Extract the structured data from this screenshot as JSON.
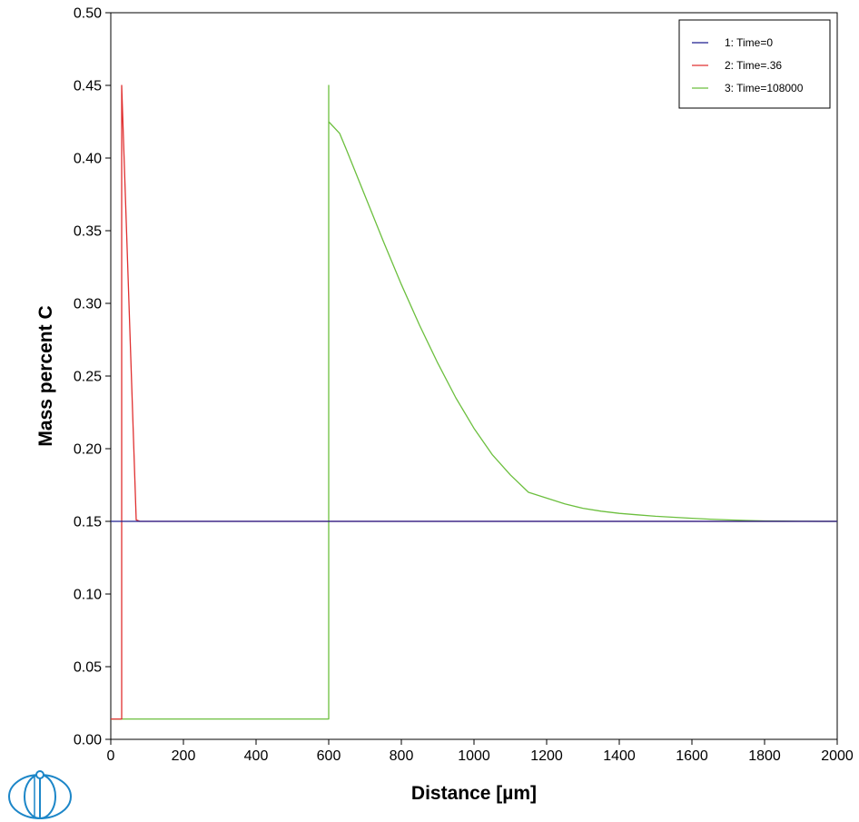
{
  "chart_data": {
    "type": "line",
    "xlabel": "Distance [µm]",
    "ylabel": "Mass percent C",
    "xlim": [
      0,
      2000
    ],
    "ylim": [
      0,
      0.5
    ],
    "xticks": [
      "0",
      "200",
      "400",
      "600",
      "800",
      "1000",
      "1200",
      "1400",
      "1600",
      "1800",
      "2000"
    ],
    "yticks": [
      "0.00",
      "0.05",
      "0.10",
      "0.15",
      "0.20",
      "0.25",
      "0.30",
      "0.35",
      "0.40",
      "0.45",
      "0.50"
    ],
    "grid": false,
    "legend_position": "top-right",
    "series": [
      {
        "name": "1:  Time=0",
        "color": "#1f1f8f",
        "x": [
          0,
          2000
        ],
        "y": [
          0.15,
          0.15
        ]
      },
      {
        "name": "2:  Time=.36",
        "color": "#e03030",
        "x": [
          0,
          30,
          30,
          70,
          80,
          2000
        ],
        "y": [
          0.014,
          0.014,
          0.45,
          0.151,
          0.15,
          0.15
        ]
      },
      {
        "name": "3:  Time=108000",
        "color": "#6cbf3e",
        "x": [
          0,
          600,
          600,
          600,
          630,
          650,
          700,
          750,
          800,
          850,
          900,
          950,
          1000,
          1050,
          1100,
          1150,
          1200,
          1250,
          1300,
          1350,
          1400,
          1450,
          1500,
          1550,
          1600,
          1650,
          1700,
          1750,
          1800,
          1850,
          1900,
          1950,
          2000
        ],
        "y": [
          0.014,
          0.014,
          0.45,
          0.425,
          0.417,
          0.405,
          0.374,
          0.343,
          0.313,
          0.285,
          0.259,
          0.235,
          0.214,
          0.196,
          0.182,
          0.17,
          0.166,
          0.162,
          0.159,
          0.157,
          0.1555,
          0.1545,
          0.1535,
          0.1528,
          0.1521,
          0.1515,
          0.151,
          0.1506,
          0.1503,
          0.1502,
          0.1501,
          0.15,
          0.15
        ]
      }
    ]
  },
  "logo": {
    "icon": "thermo-calc-logo-icon",
    "color": "#1c86c8"
  }
}
